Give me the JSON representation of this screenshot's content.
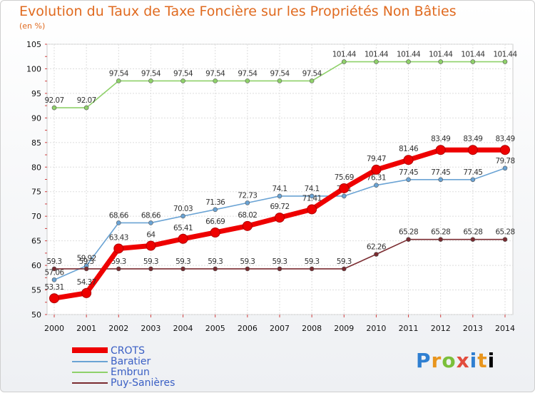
{
  "chart_data": {
    "type": "line",
    "title": "Evolution du Taux de Taxe Foncière sur les Propriétés Non Bâties",
    "subtitle": "(en %)",
    "x": [
      2000,
      2001,
      2002,
      2003,
      2004,
      2005,
      2006,
      2007,
      2008,
      2009,
      2010,
      2011,
      2012,
      2013,
      2014
    ],
    "x_tick_labels": [
      "2000",
      "2001",
      "2002",
      "2003",
      "2004",
      "2005",
      "2006",
      "2007",
      "2008",
      "2009",
      "2010",
      "2011",
      "2012",
      "2013",
      "2014"
    ],
    "ylim": [
      50,
      105
    ],
    "y_ticks": [
      50,
      55,
      60,
      65,
      70,
      75,
      80,
      85,
      90,
      95,
      100,
      105
    ],
    "grid": true,
    "legend_position": "bottom-left",
    "series": [
      {
        "name": "Embrun",
        "color": "#8fd16a",
        "values": [
          92.07,
          92.07,
          97.54,
          97.54,
          97.54,
          97.54,
          97.54,
          97.54,
          97.54,
          101.44,
          101.44,
          101.44,
          101.44,
          101.44,
          101.44
        ],
        "labels": [
          "92.07",
          "92.07",
          "97.54",
          "97.54",
          "97.54",
          "97.54",
          "97.54",
          "97.54",
          "97.54",
          "101.44",
          "101.44",
          "101.44",
          "101.44",
          "101.44",
          "101.44"
        ]
      },
      {
        "name": "Baratier",
        "color": "#6aa3d4",
        "values": [
          57.06,
          59.92,
          68.66,
          68.66,
          70.03,
          71.36,
          72.73,
          74.1,
          74.1,
          74.1,
          76.31,
          77.45,
          77.45,
          77.45,
          79.78
        ],
        "labels": [
          "57.06",
          "59.92",
          "68.66",
          "68.66",
          "70.03",
          "71.36",
          "72.73",
          "74.1",
          "74.1",
          "74.1",
          "76.31",
          "77.45",
          "77.45",
          "77.45",
          "79.78"
        ]
      },
      {
        "name": "Puy-Sanières",
        "color": "#7a2b30",
        "values": [
          59.3,
          59.3,
          59.3,
          59.3,
          59.3,
          59.3,
          59.3,
          59.3,
          59.3,
          59.3,
          62.26,
          65.28,
          65.28,
          65.28,
          65.28
        ],
        "labels": [
          "59.3",
          "59.3",
          "59.3",
          "59.3",
          "59.3",
          "59.3",
          "59.3",
          "59.3",
          "59.3",
          "59.3",
          "62.26",
          "65.28",
          "65.28",
          "65.28",
          "65.28"
        ]
      },
      {
        "name": "CROTS",
        "color": "#ee0000",
        "values": [
          53.31,
          54.37,
          63.43,
          64,
          65.41,
          66.69,
          68.02,
          69.72,
          71.41,
          75.69,
          79.47,
          81.46,
          83.49,
          83.49,
          83.49
        ],
        "labels": [
          "53.31",
          "54.37",
          "63.43",
          "64",
          "65.41",
          "66.69",
          "68.02",
          "69.72",
          "71.41",
          "75.69",
          "79.47",
          "81.46",
          "83.49",
          "83.49",
          "83.49"
        ]
      }
    ],
    "legend_order": [
      "CROTS",
      "Baratier",
      "Embrun",
      "Puy-Sanières"
    ]
  },
  "logo": {
    "letters": [
      "P",
      "r",
      "o",
      "x",
      "i",
      "t",
      "i"
    ]
  }
}
